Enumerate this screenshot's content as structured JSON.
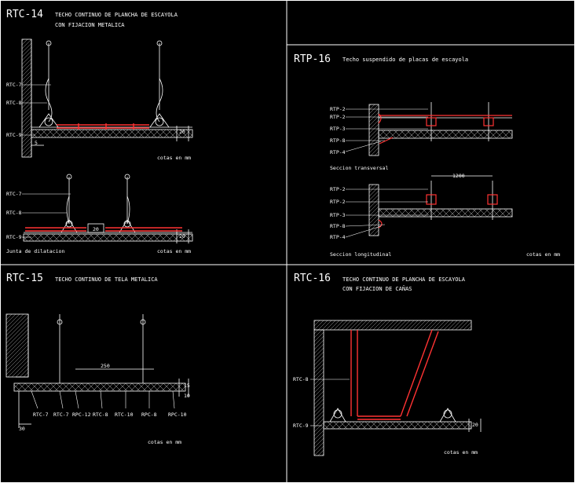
{
  "panels": [
    {
      "code": "RTC-14",
      "title_lines": [
        "TECHO CONTINUO DE PLANCHA DE ESCAYOLA",
        "CON FIJACION METALICA"
      ],
      "labels_top": [
        "RTC-7",
        "RTC-8",
        "RTC-9"
      ],
      "labels_bottom": [
        "RTC-7",
        "RTC-8",
        "RTC-9"
      ],
      "note": "cotas en mm",
      "note2": "cotas en mm",
      "caption_joint": "Junta de dilatacion",
      "dim_small": "20",
      "dim_joint": "20",
      "dim_left": "5"
    },
    {
      "code": "RTP-16",
      "title_lines": [
        "Techo suspendido de placas de escayola"
      ],
      "labels_a": [
        "RTP-2",
        "RTP-2",
        "RTP-3",
        "RTP-8",
        "RTP-4"
      ],
      "caption_a": "Seccion transversal",
      "labels_b": [
        "RTP-2",
        "RTP-2",
        "RTP-3",
        "RTP-8",
        "RTP-4"
      ],
      "caption_b": "Seccion longitudinal",
      "dim_top": "1200",
      "note": "cotas en mm"
    },
    {
      "code": "RTC-15",
      "title_lines": [
        "TECHO CONTINUO DE TELA METALICA"
      ],
      "labels_bottom": [
        "RTC-7",
        "RTC-7",
        "RPC-12",
        "RTC-8",
        "RTC-10",
        "RPC-8",
        "RPC-10"
      ],
      "dim_top": "250",
      "dim_left": "30",
      "dims_right": [
        "15",
        "10"
      ],
      "note": "cotas en mm"
    },
    {
      "code": "RTC-16",
      "title_lines": [
        "TECHO CONTINUO DE PLANCHA DE ESCAYOLA",
        "CON FIJACION DE CAÑAS"
      ],
      "labels": [
        "RTC-8",
        "RTC-9"
      ],
      "dim_right": "20",
      "note": "cotas en mm"
    }
  ],
  "colors": {
    "line": "#ffffff",
    "accent": "#ff3333",
    "bg": "#000000"
  }
}
